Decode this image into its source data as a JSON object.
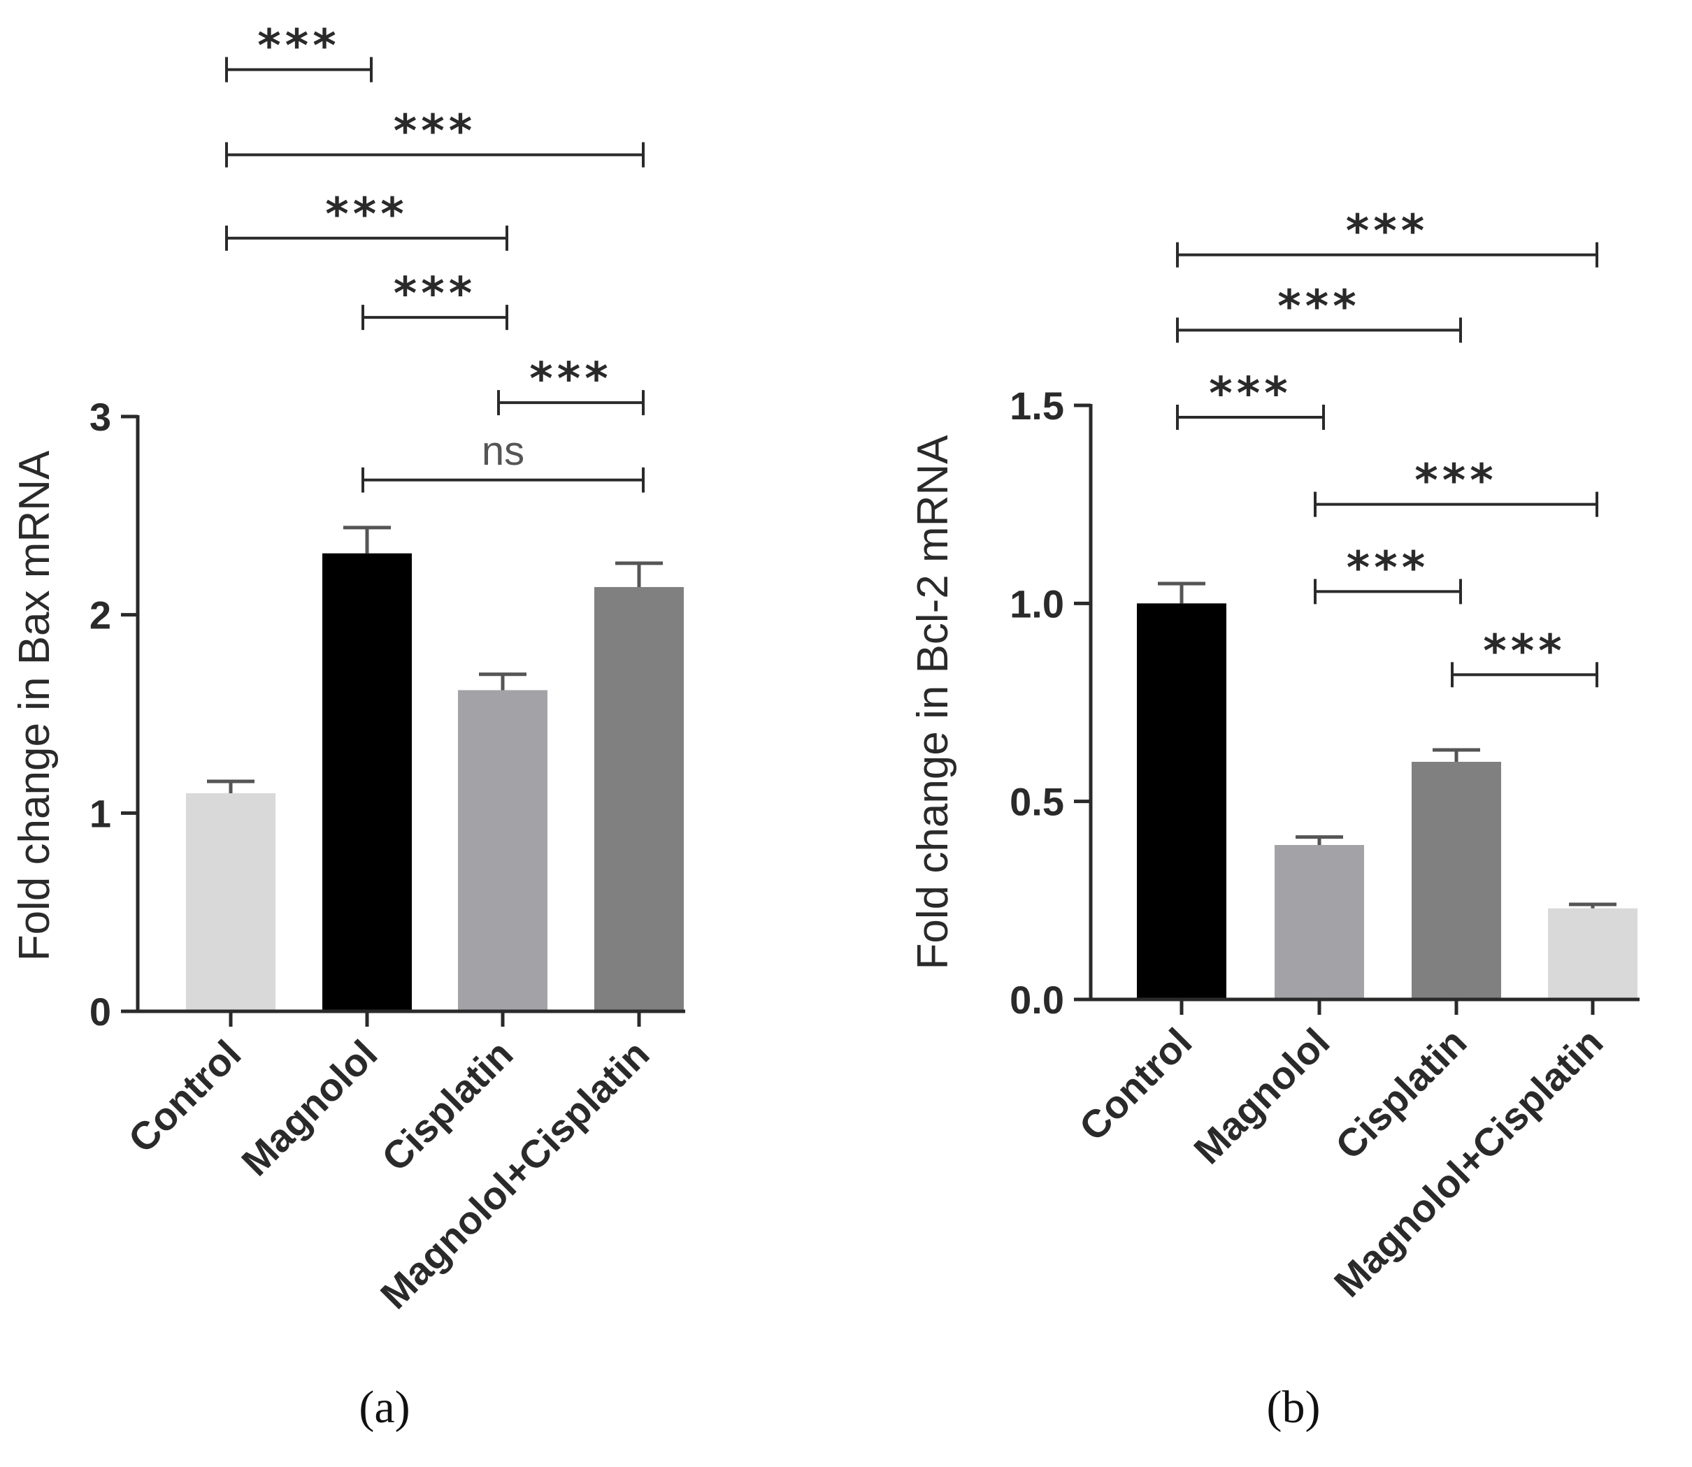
{
  "chart_data": [
    {
      "type": "bar",
      "panel_label": "(a)",
      "title": "",
      "xlabel": "",
      "ylabel": "Fold change in Bax mRNA",
      "ylim": [
        0,
        3
      ],
      "yticks": [
        "0",
        "1",
        "2",
        "3"
      ],
      "ytick_values": [
        0,
        1,
        2,
        3
      ],
      "grid": false,
      "categories": [
        "Control",
        "Magnolol",
        "Cisplatin",
        "Magnolol+Cisplatin"
      ],
      "values": [
        1.1,
        2.31,
        1.62,
        2.14
      ],
      "errors": [
        0.06,
        0.13,
        0.08,
        0.12
      ],
      "colors": [
        "#d9d9d9",
        "#000000",
        "#a3a3a7",
        "#808080"
      ],
      "significance": [
        {
          "from": 0,
          "to": 1,
          "label": "***",
          "y": 4.75
        },
        {
          "from": 0,
          "to": 3,
          "label": "***",
          "y": 4.32
        },
        {
          "from": 0,
          "to": 2,
          "label": "***",
          "y": 3.9
        },
        {
          "from": 1,
          "to": 2,
          "label": "***",
          "y": 3.5
        },
        {
          "from": 2,
          "to": 3,
          "label": "***",
          "y": 3.07
        },
        {
          "from": 1,
          "to": 3,
          "label": "ns",
          "y": 2.68
        }
      ]
    },
    {
      "type": "bar",
      "panel_label": "(b)",
      "title": "",
      "xlabel": "",
      "ylabel": "Fold change in Bcl-2 mRNA",
      "ylim": [
        0,
        1.5
      ],
      "yticks": [
        "0.0",
        "0.5",
        "1.0",
        "1.5"
      ],
      "ytick_values": [
        0,
        0.5,
        1.0,
        1.5
      ],
      "grid": false,
      "categories": [
        "Control",
        "Magnolol",
        "Cisplatin",
        "Magnolol+Cisplatin"
      ],
      "values": [
        1.0,
        0.39,
        0.6,
        0.23
      ],
      "errors": [
        0.05,
        0.02,
        0.03,
        0.01
      ],
      "colors": [
        "#000000",
        "#a3a3a7",
        "#808080",
        "#d9d9d9"
      ],
      "significance": [
        {
          "from": 0,
          "to": 3,
          "label": "***",
          "y": 1.88
        },
        {
          "from": 0,
          "to": 2,
          "label": "***",
          "y": 1.69
        },
        {
          "from": 0,
          "to": 1,
          "label": "***",
          "y": 1.47
        },
        {
          "from": 1,
          "to": 3,
          "label": "***",
          "y": 1.25
        },
        {
          "from": 1,
          "to": 2,
          "label": "***",
          "y": 1.03
        },
        {
          "from": 2,
          "to": 3,
          "label": "***",
          "y": 0.82
        }
      ]
    }
  ]
}
